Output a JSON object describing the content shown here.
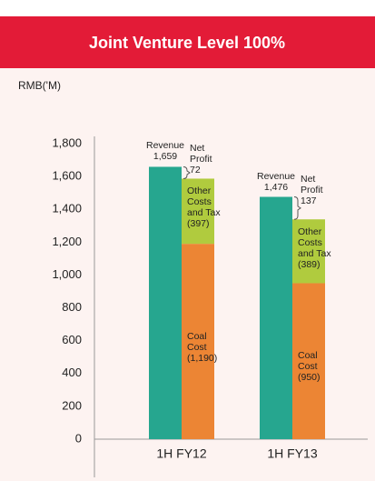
{
  "chart_data": {
    "type": "bar",
    "title": "Joint Venture Level 100%",
    "y_label": "RMB('M)",
    "categories": [
      "1H FY12",
      "1H FY13"
    ],
    "series": [
      {
        "name": "Revenue",
        "color": "#26a68f",
        "values": [
          1659,
          1476
        ],
        "value_labels": [
          "1,659",
          "1,476"
        ],
        "role": "total"
      },
      {
        "name": "Coal Cost",
        "color": "#ec8534",
        "values": [
          1190,
          950
        ],
        "value_labels": [
          "(1,190)",
          "(950)"
        ],
        "role": "stack"
      },
      {
        "name": "Other Costs and Tax",
        "color": "#b0cb3e",
        "values": [
          397,
          389
        ],
        "value_labels": [
          "(397)",
          "(389)"
        ],
        "role": "stack"
      },
      {
        "name": "Net Profit",
        "color": "#26a68f",
        "values": [
          72,
          137
        ],
        "value_labels": [
          "72",
          "137"
        ],
        "role": "gap"
      }
    ],
    "ylim": [
      0,
      1800
    ],
    "yticks": [
      0,
      200,
      400,
      600,
      800,
      {
        "value": 1000,
        "label": "1,000"
      },
      {
        "value": 1200,
        "label": "1,200"
      },
      {
        "value": 1400,
        "label": "1,400"
      },
      {
        "value": 1600,
        "label": "1,600"
      },
      {
        "value": 1800,
        "label": "1,800"
      }
    ]
  }
}
